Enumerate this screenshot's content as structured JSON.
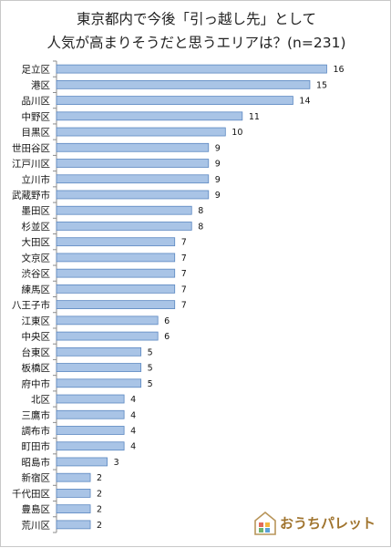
{
  "chart_data": {
    "type": "bar",
    "orientation": "horizontal",
    "title_line1": "東京都内で今後「引っ越し先」として",
    "title_line2": "人気が高まりそうだと思うエリアは？(n=231)",
    "categories": [
      "足立区",
      "港区",
      "品川区",
      "中野区",
      "目黒区",
      "世田谷区",
      "江戸川区",
      "立川市",
      "武蔵野市",
      "墨田区",
      "杉並区",
      "大田区",
      "文京区",
      "渋谷区",
      "練馬区",
      "八王子市",
      "江東区",
      "中央区",
      "台東区",
      "板橋区",
      "府中市",
      "北区",
      "三鷹市",
      "調布市",
      "町田市",
      "昭島市",
      "新宿区",
      "千代田区",
      "豊島区",
      "荒川区"
    ],
    "values": [
      16,
      15,
      14,
      11,
      10,
      9,
      9,
      9,
      9,
      8,
      8,
      7,
      7,
      7,
      7,
      7,
      6,
      6,
      5,
      5,
      5,
      4,
      4,
      4,
      4,
      3,
      2,
      2,
      2,
      2
    ],
    "xlim": [
      0,
      17
    ],
    "bar_color": "#a9c4e6",
    "bar_border_color": "#5b87c1"
  },
  "logo": {
    "text": "おうちパレット",
    "color": "#a0742e"
  }
}
